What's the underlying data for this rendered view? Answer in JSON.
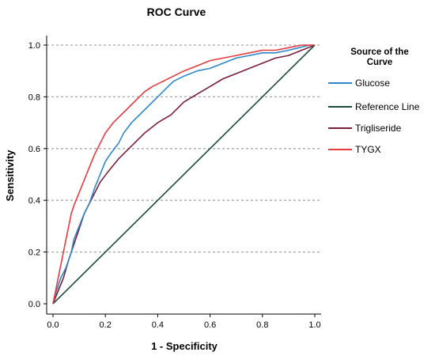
{
  "chart_data": {
    "type": "line",
    "title": "ROC Curve",
    "xlabel": "1 - Specificity",
    "ylabel": "Sensitivity",
    "xlim": [
      0.0,
      1.0
    ],
    "ylim": [
      0.0,
      1.0
    ],
    "x_ticks": [
      "0.0",
      "0.2",
      "0.4",
      "0.6",
      "0.8",
      "1.0"
    ],
    "y_ticks": [
      "0.0",
      "0.2",
      "0.4",
      "0.6",
      "0.8",
      "1.0"
    ],
    "grid": "horizontal dashed",
    "legend": {
      "title_line1": "Source of the",
      "title_line2": "Curve",
      "placement": "right"
    },
    "series": [
      {
        "name": "Glucose",
        "color": "#2E86C8",
        "x": [
          0.0,
          0.01,
          0.02,
          0.03,
          0.05,
          0.07,
          0.08,
          0.1,
          0.12,
          0.14,
          0.16,
          0.18,
          0.2,
          0.22,
          0.25,
          0.27,
          0.3,
          0.33,
          0.36,
          0.4,
          0.43,
          0.46,
          0.5,
          0.55,
          0.6,
          0.65,
          0.7,
          0.75,
          0.8,
          0.85,
          0.9,
          0.94,
          0.98,
          1.0
        ],
        "y": [
          0.0,
          0.04,
          0.07,
          0.1,
          0.14,
          0.2,
          0.25,
          0.3,
          0.35,
          0.39,
          0.45,
          0.5,
          0.55,
          0.58,
          0.62,
          0.66,
          0.7,
          0.73,
          0.76,
          0.8,
          0.83,
          0.86,
          0.88,
          0.9,
          0.91,
          0.93,
          0.95,
          0.96,
          0.97,
          0.97,
          0.98,
          0.99,
          1.0,
          1.0
        ]
      },
      {
        "name": "Reference Line",
        "color": "#1B4A3C",
        "x": [
          0.0,
          1.0
        ],
        "y": [
          0.0,
          1.0
        ]
      },
      {
        "name": "Trigliseride",
        "color": "#7A1F3A",
        "x": [
          0.0,
          0.02,
          0.04,
          0.06,
          0.08,
          0.1,
          0.12,
          0.15,
          0.18,
          0.21,
          0.25,
          0.28,
          0.31,
          0.35,
          0.4,
          0.45,
          0.5,
          0.55,
          0.6,
          0.65,
          0.7,
          0.75,
          0.8,
          0.85,
          0.9,
          0.95,
          1.0
        ],
        "y": [
          0.0,
          0.05,
          0.1,
          0.17,
          0.23,
          0.29,
          0.35,
          0.41,
          0.47,
          0.51,
          0.56,
          0.59,
          0.62,
          0.66,
          0.7,
          0.73,
          0.78,
          0.81,
          0.84,
          0.87,
          0.89,
          0.91,
          0.93,
          0.95,
          0.96,
          0.98,
          1.0
        ]
      },
      {
        "name": "TYGX",
        "color": "#E8393F",
        "x": [
          0.0,
          0.01,
          0.02,
          0.03,
          0.04,
          0.05,
          0.06,
          0.07,
          0.08,
          0.1,
          0.12,
          0.14,
          0.16,
          0.18,
          0.2,
          0.23,
          0.26,
          0.29,
          0.32,
          0.35,
          0.38,
          0.42,
          0.46,
          0.5,
          0.55,
          0.6,
          0.65,
          0.7,
          0.75,
          0.8,
          0.85,
          0.9,
          0.95,
          1.0
        ],
        "y": [
          0.0,
          0.05,
          0.1,
          0.15,
          0.2,
          0.25,
          0.3,
          0.35,
          0.38,
          0.43,
          0.48,
          0.53,
          0.58,
          0.62,
          0.66,
          0.7,
          0.73,
          0.76,
          0.79,
          0.82,
          0.84,
          0.86,
          0.88,
          0.9,
          0.92,
          0.94,
          0.95,
          0.96,
          0.97,
          0.98,
          0.98,
          0.99,
          1.0,
          1.0
        ]
      }
    ]
  }
}
